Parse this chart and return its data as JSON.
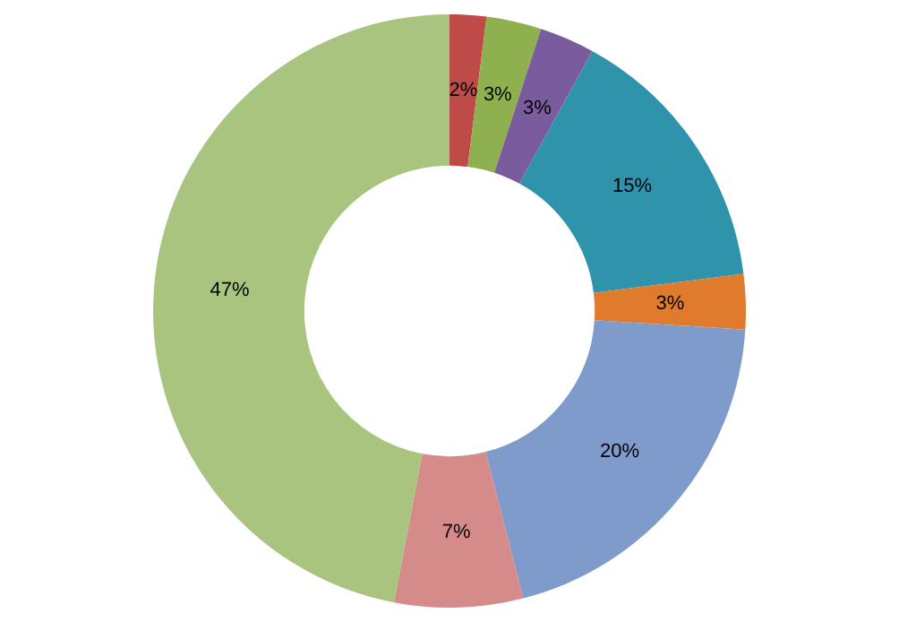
{
  "chart_data": {
    "type": "donut",
    "categories": [
      null,
      null,
      null,
      null,
      null,
      null,
      null,
      null
    ],
    "values": [
      2,
      3,
      3,
      15,
      3,
      20,
      7,
      47
    ],
    "colors": [
      "#be4b48",
      "#8fb04e",
      "#7a5c9e",
      "#2f93ac",
      "#e07a2c",
      "#7f9bcc",
      "#d48b89",
      "#a9c47f"
    ],
    "value_labels": [
      "2%",
      "3%",
      "3%",
      "15%",
      "3%",
      "20%",
      "7%",
      "47%"
    ],
    "legend": false
  }
}
